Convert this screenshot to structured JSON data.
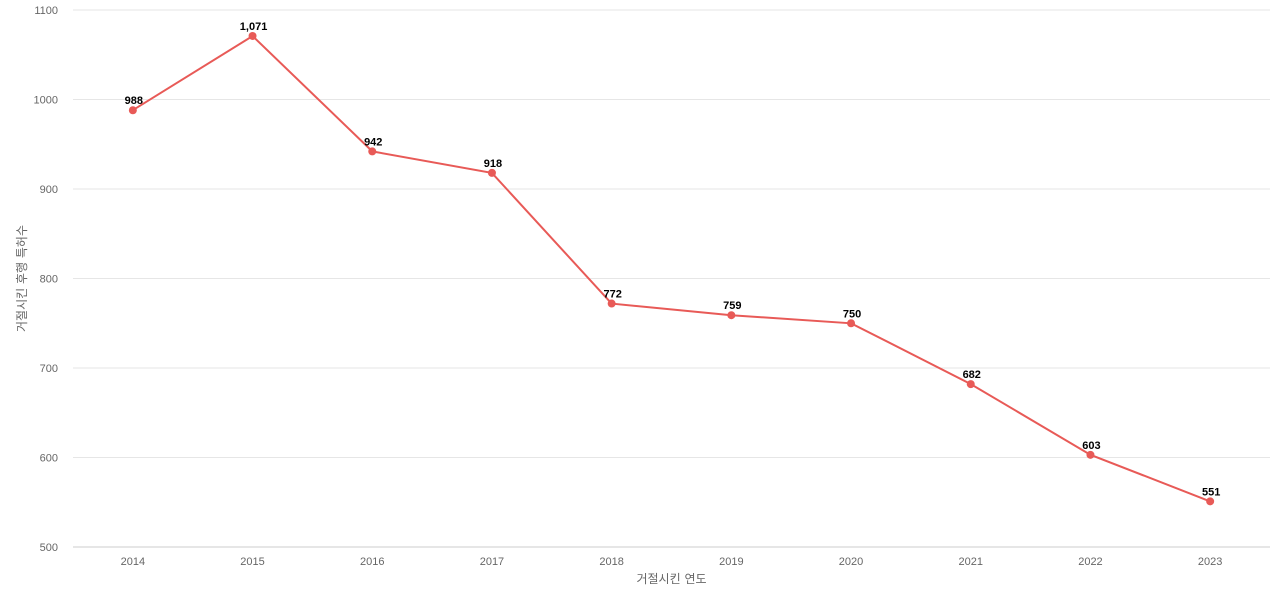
{
  "chart_data": {
    "type": "line",
    "title": "",
    "xlabel": "거절시킨 연도",
    "ylabel": "거절시킨 후행 특허수",
    "categories": [
      "2014",
      "2015",
      "2016",
      "2017",
      "2018",
      "2019",
      "2020",
      "2021",
      "2022",
      "2023"
    ],
    "series": [
      {
        "values": [
          988,
          1071,
          942,
          918,
          772,
          759,
          750,
          682,
          603,
          551
        ],
        "labels": [
          "988",
          "1,071",
          "942",
          "918",
          "772",
          "759",
          "750",
          "682",
          "603",
          "551"
        ],
        "color": "#e85a57"
      }
    ],
    "ylim": [
      500,
      1100
    ],
    "yticks": [
      500,
      600,
      700,
      800,
      900,
      1000,
      1100
    ],
    "grid": true,
    "legend": "none"
  }
}
